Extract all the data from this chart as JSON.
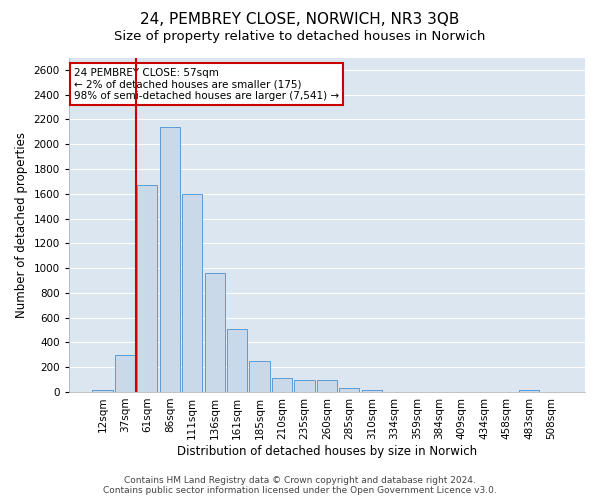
{
  "title": "24, PEMBREY CLOSE, NORWICH, NR3 3QB",
  "subtitle": "Size of property relative to detached houses in Norwich",
  "xlabel": "Distribution of detached houses by size in Norwich",
  "ylabel": "Number of detached properties",
  "footer_line1": "Contains HM Land Registry data © Crown copyright and database right 2024.",
  "footer_line2": "Contains public sector information licensed under the Open Government Licence v3.0.",
  "annotation_title": "24 PEMBREY CLOSE: 57sqm",
  "annotation_line1": "← 2% of detached houses are smaller (175)",
  "annotation_line2": "98% of semi-detached houses are larger (7,541) →",
  "bar_categories": [
    "12sqm",
    "37sqm",
    "61sqm",
    "86sqm",
    "111sqm",
    "136sqm",
    "161sqm",
    "185sqm",
    "210sqm",
    "235sqm",
    "260sqm",
    "285sqm",
    "310sqm",
    "334sqm",
    "359sqm",
    "384sqm",
    "409sqm",
    "434sqm",
    "458sqm",
    "483sqm",
    "508sqm"
  ],
  "bar_values": [
    18,
    295,
    1670,
    2140,
    1600,
    960,
    510,
    250,
    115,
    100,
    95,
    35,
    18,
    0,
    0,
    0,
    0,
    0,
    0,
    18,
    0
  ],
  "bar_color": "#c9d9ea",
  "bar_edge_color": "#5b9bd5",
  "vline_color": "#cc0000",
  "vline_x_index": 2,
  "ylim": [
    0,
    2700
  ],
  "yticks": [
    0,
    200,
    400,
    600,
    800,
    1000,
    1200,
    1400,
    1600,
    1800,
    2000,
    2200,
    2400,
    2600
  ],
  "annotation_box_edge_color": "#cc0000",
  "background_color": "#dce6f1",
  "title_fontsize": 11,
  "subtitle_fontsize": 9.5,
  "axis_label_fontsize": 8.5,
  "tick_fontsize": 7.5,
  "footer_fontsize": 6.5
}
